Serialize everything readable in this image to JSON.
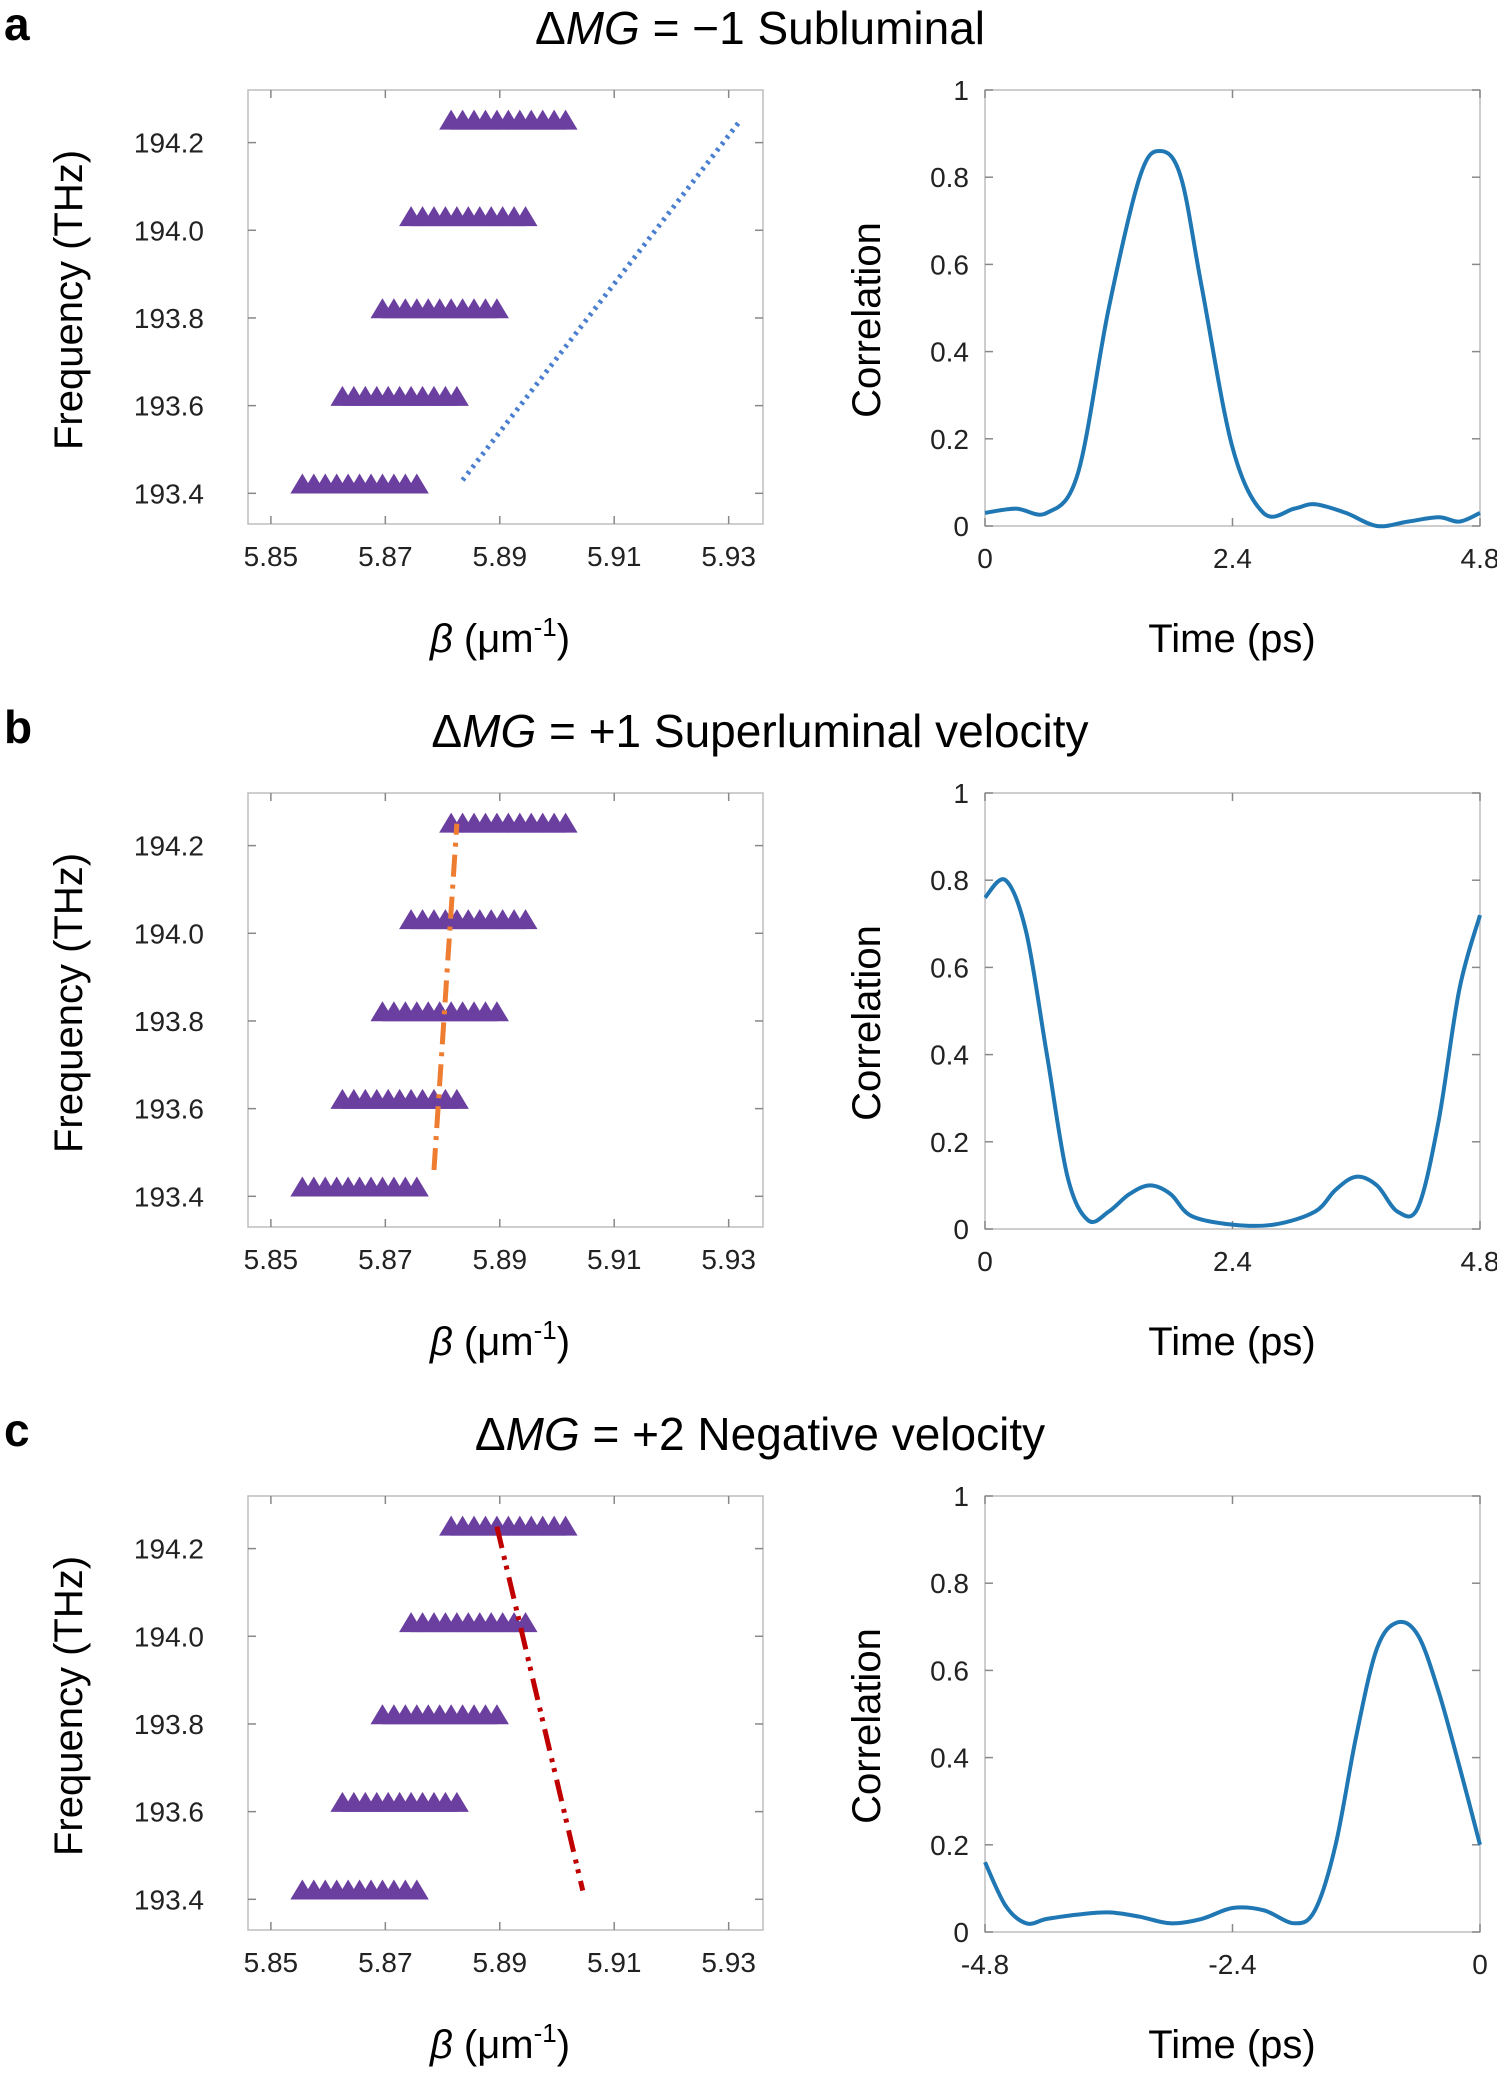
{
  "chart_data": [
    {
      "panel": "a",
      "title": "ΔMG = −1  Subluminal",
      "title_parts": {
        "prefix": "Δ",
        "symbol": "MG",
        "rest": " = −1  Subluminal"
      },
      "charts": [
        {
          "type": "scatter",
          "xlabel_symbol": "β",
          "xlabel_rest": " (μm",
          "xlabel_sup": "-1",
          "xlabel_close": ")",
          "ylabel": "Frequency (THz)",
          "xlim": [
            5.846,
            5.936
          ],
          "ylim": [
            193.33,
            194.32
          ],
          "xticks": [
            5.85,
            5.87,
            5.89,
            5.91,
            5.93
          ],
          "xtick_labels": [
            "5.85",
            "5.87",
            "5.89",
            "5.91",
            "5.93"
          ],
          "yticks": [
            193.4,
            193.6,
            193.8,
            194.0,
            194.2
          ],
          "ytick_labels": [
            "193.4",
            "193.6",
            "193.8",
            "194.0",
            "194.2"
          ],
          "marker": "triangle",
          "marker_color": "#6b3fa0",
          "rows": [
            {
              "y": 193.42,
              "x_start": 5.8555,
              "x_step": 0.002,
              "count": 11
            },
            {
              "y": 193.62,
              "x_start": 5.8625,
              "x_step": 0.002,
              "count": 11
            },
            {
              "y": 193.82,
              "x_start": 5.8695,
              "x_step": 0.002,
              "count": 11
            },
            {
              "y": 194.03,
              "x_start": 5.8745,
              "x_step": 0.002,
              "count": 11
            },
            {
              "y": 194.25,
              "x_start": 5.8815,
              "x_step": 0.002,
              "count": 11
            }
          ],
          "trend": {
            "x": [
              5.8835,
              5.932
            ],
            "y": [
              193.43,
              194.25
            ],
            "color": "#4a7fd0",
            "style": "dotted"
          }
        },
        {
          "type": "line",
          "xlabel": "Time (ps)",
          "ylabel": "Correlation",
          "xlim": [
            0,
            4.8
          ],
          "ylim": [
            0,
            1
          ],
          "xticks": [
            0,
            2.4,
            4.8
          ],
          "xtick_labels": [
            "0",
            "2.4",
            "4.8"
          ],
          "yticks": [
            0,
            0.2,
            0.4,
            0.6,
            0.8,
            1
          ],
          "ytick_labels": [
            "0",
            "0.2",
            "0.4",
            "0.6",
            "0.8",
            "1"
          ],
          "color": "#1f77b4",
          "x": [
            0,
            0.3,
            0.6,
            0.9,
            1.2,
            1.5,
            1.7,
            1.9,
            2.1,
            2.4,
            2.7,
            3.0,
            3.2,
            3.5,
            3.8,
            4.1,
            4.4,
            4.6,
            4.8
          ],
          "y": [
            0.03,
            0.04,
            0.03,
            0.12,
            0.5,
            0.8,
            0.86,
            0.8,
            0.55,
            0.18,
            0.03,
            0.04,
            0.05,
            0.03,
            0.0,
            0.01,
            0.02,
            0.01,
            0.03
          ]
        }
      ]
    },
    {
      "panel": "b",
      "title": "ΔMG = +1  Superluminal velocity",
      "title_parts": {
        "prefix": "Δ",
        "symbol": "MG",
        "rest": " = +1  Superluminal velocity"
      },
      "charts": [
        {
          "type": "scatter",
          "xlabel_symbol": "β",
          "xlabel_rest": " (μm",
          "xlabel_sup": "-1",
          "xlabel_close": ")",
          "ylabel": "Frequency (THz)",
          "xlim": [
            5.846,
            5.936
          ],
          "ylim": [
            193.33,
            194.32
          ],
          "xticks": [
            5.85,
            5.87,
            5.89,
            5.91,
            5.93
          ],
          "xtick_labels": [
            "5.85",
            "5.87",
            "5.89",
            "5.91",
            "5.93"
          ],
          "yticks": [
            193.4,
            193.6,
            193.8,
            194.0,
            194.2
          ],
          "ytick_labels": [
            "193.4",
            "193.6",
            "193.8",
            "194.0",
            "194.2"
          ],
          "marker": "triangle",
          "marker_color": "#6b3fa0",
          "rows": [
            {
              "y": 193.42,
              "x_start": 5.8555,
              "x_step": 0.002,
              "count": 11
            },
            {
              "y": 193.62,
              "x_start": 5.8625,
              "x_step": 0.002,
              "count": 11
            },
            {
              "y": 193.82,
              "x_start": 5.8695,
              "x_step": 0.002,
              "count": 11
            },
            {
              "y": 194.03,
              "x_start": 5.8745,
              "x_step": 0.002,
              "count": 11
            },
            {
              "y": 194.25,
              "x_start": 5.8815,
              "x_step": 0.002,
              "count": 11
            }
          ],
          "trend": {
            "x": [
              5.8785,
              5.8825
            ],
            "y": [
              193.46,
              194.25
            ],
            "color": "#ee7d31",
            "style": "dashdot"
          }
        },
        {
          "type": "line",
          "xlabel": "Time (ps)",
          "ylabel": "Correlation",
          "xlim": [
            0,
            4.8
          ],
          "ylim": [
            0,
            1
          ],
          "xticks": [
            0,
            2.4,
            4.8
          ],
          "xtick_labels": [
            "0",
            "2.4",
            "4.8"
          ],
          "yticks": [
            0,
            0.2,
            0.4,
            0.6,
            0.8,
            1
          ],
          "ytick_labels": [
            "0",
            "0.2",
            "0.4",
            "0.6",
            "0.8",
            "1"
          ],
          "color": "#1f77b4",
          "x": [
            0,
            0.2,
            0.4,
            0.6,
            0.8,
            1.0,
            1.2,
            1.4,
            1.6,
            1.8,
            2.0,
            2.4,
            2.8,
            3.2,
            3.4,
            3.6,
            3.8,
            4.0,
            4.2,
            4.4,
            4.6,
            4.8
          ],
          "y": [
            0.76,
            0.8,
            0.68,
            0.4,
            0.12,
            0.02,
            0.04,
            0.08,
            0.1,
            0.08,
            0.03,
            0.01,
            0.01,
            0.04,
            0.09,
            0.12,
            0.1,
            0.04,
            0.05,
            0.25,
            0.55,
            0.72
          ]
        }
      ]
    },
    {
      "panel": "c",
      "title": "ΔMG = +2  Negative velocity",
      "title_parts": {
        "prefix": "Δ",
        "symbol": "MG",
        "rest": " = +2  Negative velocity"
      },
      "charts": [
        {
          "type": "scatter",
          "xlabel_symbol": "β",
          "xlabel_rest": " (μm",
          "xlabel_sup": "-1",
          "xlabel_close": ")",
          "ylabel": "Frequency (THz)",
          "xlim": [
            5.846,
            5.936
          ],
          "ylim": [
            193.33,
            194.32
          ],
          "xticks": [
            5.85,
            5.87,
            5.89,
            5.91,
            5.93
          ],
          "xtick_labels": [
            "5.85",
            "5.87",
            "5.89",
            "5.91",
            "5.93"
          ],
          "yticks": [
            193.4,
            193.6,
            193.8,
            194.0,
            194.2
          ],
          "ytick_labels": [
            "193.4",
            "193.6",
            "193.8",
            "194.0",
            "194.2"
          ],
          "marker": "triangle",
          "marker_color": "#6b3fa0",
          "rows": [
            {
              "y": 193.42,
              "x_start": 5.8555,
              "x_step": 0.002,
              "count": 11
            },
            {
              "y": 193.62,
              "x_start": 5.8625,
              "x_step": 0.002,
              "count": 11
            },
            {
              "y": 193.82,
              "x_start": 5.8695,
              "x_step": 0.002,
              "count": 11
            },
            {
              "y": 194.03,
              "x_start": 5.8745,
              "x_step": 0.002,
              "count": 11
            },
            {
              "y": 194.25,
              "x_start": 5.8815,
              "x_step": 0.002,
              "count": 11
            }
          ],
          "trend": {
            "x": [
              5.8895,
              5.9045
            ],
            "y": [
              194.25,
              193.42
            ],
            "color": "#c00000",
            "style": "dashdotdot"
          }
        },
        {
          "type": "line",
          "xlabel": "Time (ps)",
          "ylabel": "Correlation",
          "xlim": [
            -4.8,
            0
          ],
          "ylim": [
            0,
            1
          ],
          "xticks": [
            -4.8,
            -2.4,
            0
          ],
          "xtick_labels": [
            "-4.8",
            "-2.4",
            "0"
          ],
          "yticks": [
            0,
            0.2,
            0.4,
            0.6,
            0.8,
            1
          ],
          "ytick_labels": [
            "0",
            "0.2",
            "0.4",
            "0.6",
            "0.8",
            "1"
          ],
          "color": "#1f77b4",
          "x": [
            -4.8,
            -4.6,
            -4.4,
            -4.2,
            -3.9,
            -3.6,
            -3.3,
            -3.0,
            -2.7,
            -2.4,
            -2.1,
            -1.8,
            -1.6,
            -1.4,
            -1.2,
            -1.0,
            -0.8,
            -0.6,
            -0.4,
            -0.2,
            0
          ],
          "y": [
            0.16,
            0.06,
            0.02,
            0.03,
            0.04,
            0.045,
            0.035,
            0.02,
            0.03,
            0.055,
            0.05,
            0.02,
            0.05,
            0.2,
            0.45,
            0.65,
            0.71,
            0.68,
            0.55,
            0.38,
            0.2
          ]
        }
      ]
    }
  ]
}
